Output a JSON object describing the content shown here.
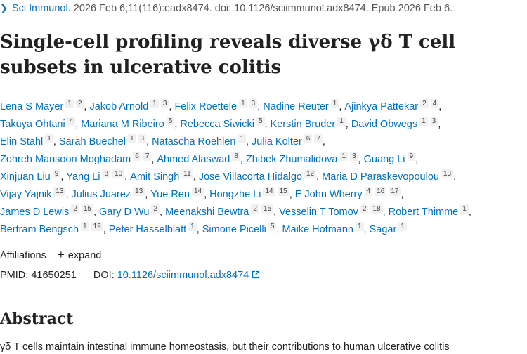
{
  "citation": {
    "journal": "Sci Immunol.",
    "details": "2026 Feb 6;11(116):eadx8474. doi: 10.1126/sciimmunol.adx8474. Epub 2026 Feb 6."
  },
  "title": "Single-cell profiling reveals diverse γδ T cell subsets in ulcerative colitis",
  "author_lines": [
    [
      {
        "name": "Lena S Mayer",
        "affil": [
          "1",
          "2"
        ]
      },
      {
        "name": "Jakob Arnold",
        "affil": [
          "1",
          "3"
        ]
      },
      {
        "name": "Felix Roettele",
        "affil": [
          "1",
          "3"
        ]
      },
      {
        "name": "Nadine Reuter",
        "affil": [
          "1"
        ]
      },
      {
        "name": "Ajinkya Pattekar",
        "affil": [
          "2",
          "4"
        ]
      }
    ],
    [
      {
        "name": "Takuya Ohtani",
        "affil": [
          "4"
        ]
      },
      {
        "name": "Mariana M Ribeiro",
        "affil": [
          "5"
        ]
      },
      {
        "name": "Rebecca Siwicki",
        "affil": [
          "5"
        ]
      },
      {
        "name": "Kerstin Bruder",
        "affil": [
          "1"
        ]
      },
      {
        "name": "David Obwegs",
        "affil": [
          "1",
          "3"
        ]
      }
    ],
    [
      {
        "name": "Elin Stahl",
        "affil": [
          "1"
        ]
      },
      {
        "name": "Sarah Buechel",
        "affil": [
          "1",
          "3"
        ]
      },
      {
        "name": "Natascha Roehlen",
        "affil": [
          "1"
        ]
      },
      {
        "name": "Julia Kolter",
        "affil": [
          "6",
          "7"
        ]
      }
    ],
    [
      {
        "name": "Zohreh Mansoori Moghadam",
        "affil": [
          "6",
          "7"
        ]
      },
      {
        "name": "Ahmed Alaswad",
        "affil": [
          "8"
        ]
      },
      {
        "name": "Zhibek Zhumalidova",
        "affil": [
          "1",
          "3"
        ]
      },
      {
        "name": "Guang Li",
        "affil": [
          "9"
        ]
      }
    ],
    [
      {
        "name": "Xinjuan Liu",
        "affil": [
          "9"
        ]
      },
      {
        "name": "Yang Li",
        "affil": [
          "8",
          "10"
        ]
      },
      {
        "name": "Amit Singh",
        "affil": [
          "11"
        ]
      },
      {
        "name": "Jose Villacorta Hidalgo",
        "affil": [
          "12"
        ]
      },
      {
        "name": "Maria D Paraskevopoulou",
        "affil": [
          "13"
        ]
      }
    ],
    [
      {
        "name": "Vijay Yajnik",
        "affil": [
          "13"
        ]
      },
      {
        "name": "Julius Juarez",
        "affil": [
          "13"
        ]
      },
      {
        "name": "Yue Ren",
        "affil": [
          "14"
        ]
      },
      {
        "name": "Hongzhe Li",
        "affil": [
          "14",
          "15"
        ]
      },
      {
        "name": "E John Wherry",
        "affil": [
          "4",
          "16",
          "17"
        ]
      }
    ],
    [
      {
        "name": "James D Lewis",
        "affil": [
          "2",
          "15"
        ]
      },
      {
        "name": "Gary D Wu",
        "affil": [
          "2"
        ]
      },
      {
        "name": "Meenakshi Bewtra",
        "affil": [
          "2",
          "15"
        ]
      },
      {
        "name": "Vesselin T Tomov",
        "affil": [
          "2",
          "18"
        ]
      },
      {
        "name": "Robert Thimme",
        "affil": [
          "1"
        ]
      }
    ],
    [
      {
        "name": "Bertram Bengsch",
        "affil": [
          "1",
          "19"
        ]
      },
      {
        "name": "Peter Hasselblatt",
        "affil": [
          "1"
        ]
      },
      {
        "name": "Simone Picelli",
        "affil": [
          "5"
        ]
      },
      {
        "name": "Maike Hofmann",
        "affil": [
          "1"
        ]
      },
      {
        "name": "Sagar",
        "affil": [
          "1"
        ]
      }
    ]
  ],
  "affiliations": {
    "label": "Affiliations",
    "expand_label": "expand"
  },
  "ids": {
    "pmid_label": "PMID:",
    "pmid": "41650251",
    "doi_label": "DOI:",
    "doi": "10.1126/sciimmunol.adx8474"
  },
  "abstract": {
    "heading": "Abstract",
    "text": "γδ T cells maintain intestinal immune homeostasis, but their contributions to human ulcerative colitis"
  },
  "colors": {
    "link": "#0071bc",
    "text": "#212121"
  }
}
